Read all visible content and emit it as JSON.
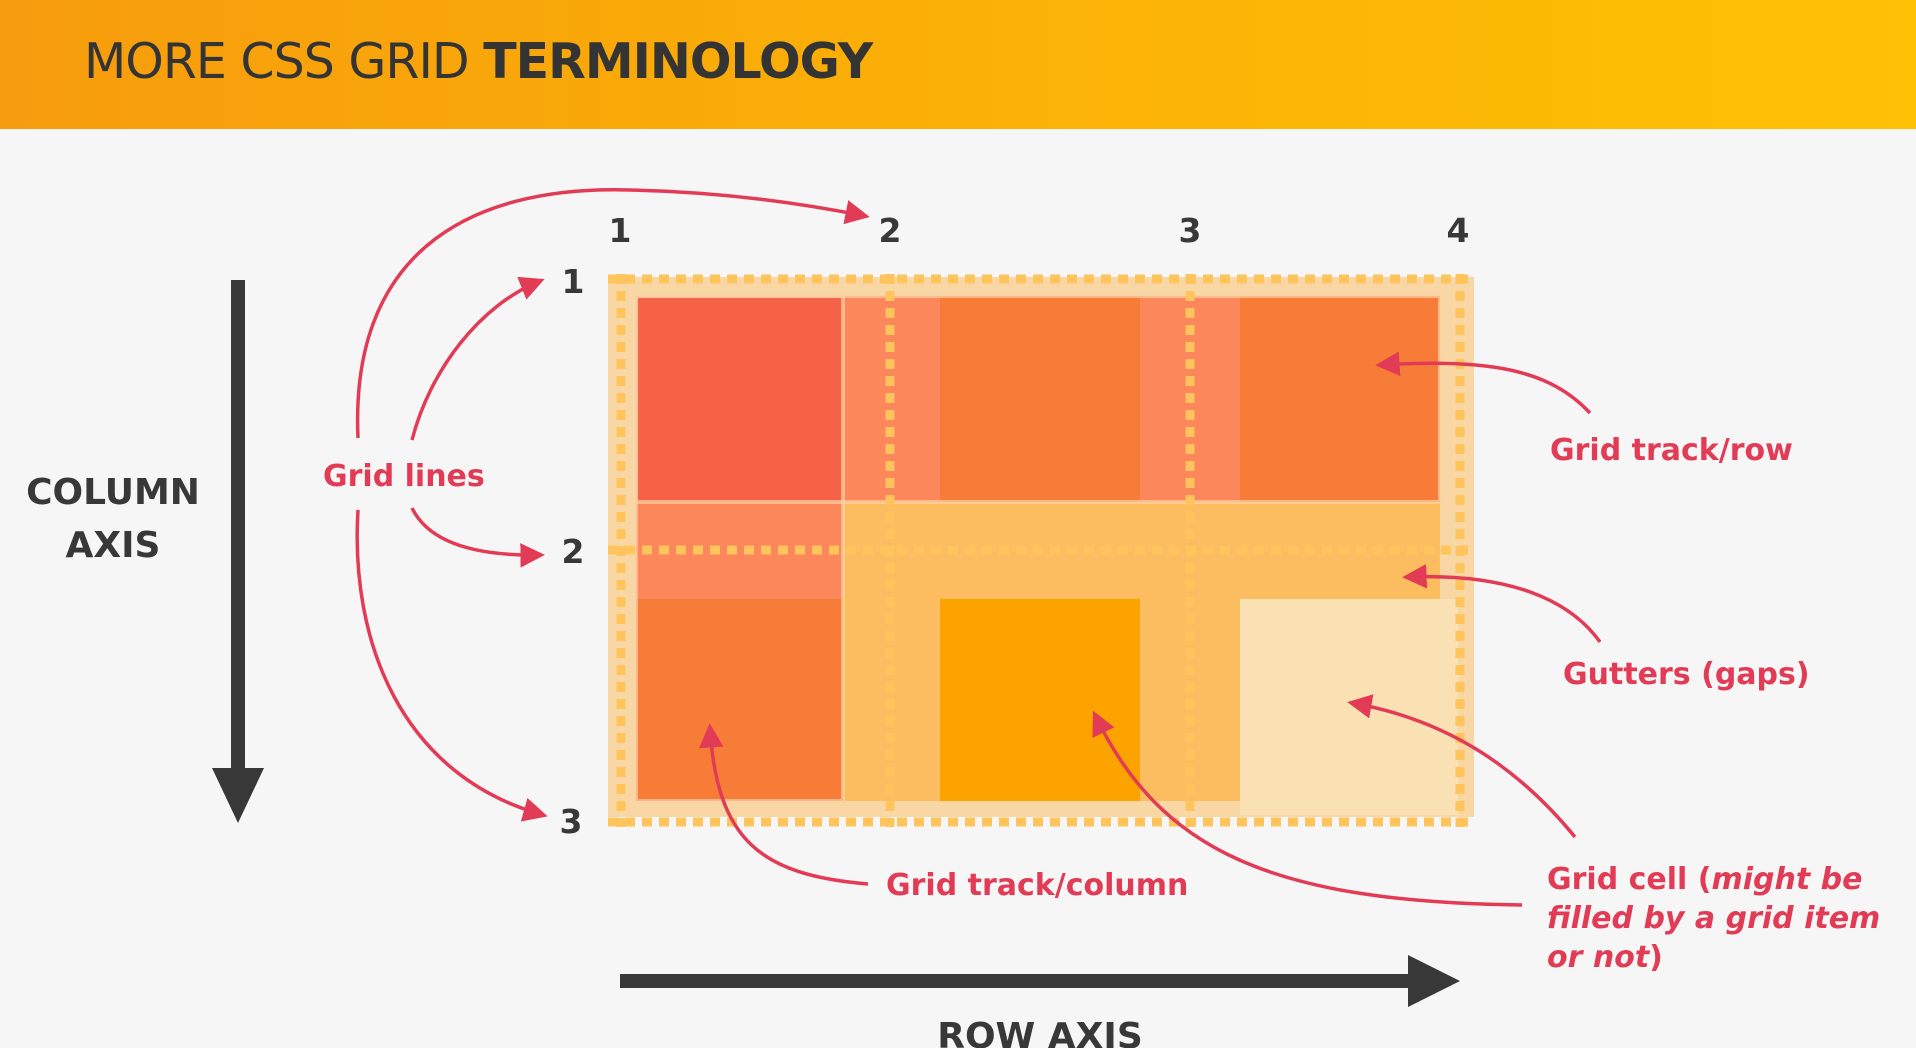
{
  "title": {
    "regular": "MORE CSS GRID ",
    "bold": "TERMINOLOGY"
  },
  "column_line_numbers": [
    "1",
    "2",
    "3",
    "4"
  ],
  "row_line_numbers": [
    "1",
    "2",
    "3"
  ],
  "axes": {
    "column": [
      "COLUMN",
      "AXIS"
    ],
    "row": "ROW AXIS"
  },
  "labels": {
    "grid_lines": "Grid lines",
    "grid_track_row": "Grid track/row",
    "gutters": "Gutters (gaps)",
    "grid_track_column": "Grid track/column",
    "grid_cell": {
      "line1_plain": "Grid cell (",
      "line1_italic": "might be",
      "line2_italic": "filled by a grid item",
      "line3_italic": "or not",
      "line3_plain": ")"
    }
  },
  "colors": {
    "accent": "#e23b55",
    "dark": "#383838",
    "orange": "#f77c38",
    "red": "#f66246",
    "amber": "#fda300",
    "gap_light": "#fbbe63",
    "cream": "#f9e1b4",
    "gap_salmon": "#fb875a"
  }
}
